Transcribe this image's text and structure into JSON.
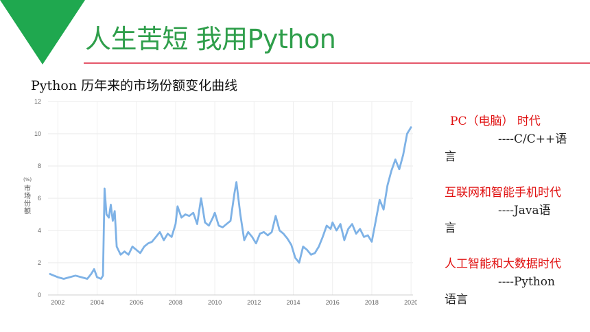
{
  "slide": {
    "title": "人生苦短 我用Python",
    "subtitle": "Python 历年来的市场份额变化曲线",
    "accent_green": "#1fa84f",
    "accent_line": "#e5566a"
  },
  "chart_data": {
    "type": "line",
    "title": "",
    "xlabel": "",
    "ylabel": "市场份额(%)",
    "ylabel_chars": [
      "(%)",
      "市",
      "场",
      "份",
      "额"
    ],
    "xlim": [
      2001.5,
      2020.1
    ],
    "ylim": [
      0,
      12
    ],
    "yticks": [
      "0",
      "2",
      "4",
      "6",
      "8",
      "10",
      "12"
    ],
    "xticks": [
      "2002",
      "2004",
      "2006",
      "2008",
      "2010",
      "2012",
      "2014",
      "2016",
      "2018",
      "2020"
    ],
    "grid": true,
    "line_color": "#7eb2e6",
    "series": [
      {
        "x": [
          2001.6,
          2001.8,
          2002.0,
          2002.3,
          2002.6,
          2002.9,
          2003.2,
          2003.5,
          2003.7,
          2003.85,
          2004.0,
          2004.2,
          2004.3,
          2004.38,
          2004.48,
          2004.6,
          2004.7,
          2004.8,
          2004.9,
          2005.0,
          2005.2,
          2005.4,
          2005.6,
          2005.8,
          2006.0,
          2006.2,
          2006.4,
          2006.6,
          2006.8,
          2007.0,
          2007.2,
          2007.4,
          2007.6,
          2007.8,
          2008.0,
          2008.1,
          2008.3,
          2008.5,
          2008.7,
          2008.9,
          2009.1,
          2009.3,
          2009.5,
          2009.7,
          2009.9,
          2010.0,
          2010.2,
          2010.4,
          2010.6,
          2010.8,
          2011.0,
          2011.1,
          2011.3,
          2011.5,
          2011.7,
          2011.9,
          2012.1,
          2012.3,
          2012.5,
          2012.7,
          2012.9,
          2013.1,
          2013.3,
          2013.5,
          2013.7,
          2013.9,
          2014.1,
          2014.3,
          2014.5,
          2014.7,
          2014.9,
          2015.1,
          2015.3,
          2015.5,
          2015.7,
          2015.9,
          2016.0,
          2016.2,
          2016.4,
          2016.6,
          2016.8,
          2017.0,
          2017.2,
          2017.4,
          2017.6,
          2017.8,
          2018.0,
          2018.2,
          2018.4,
          2018.6,
          2018.8,
          2019.0,
          2019.2,
          2019.4,
          2019.6,
          2019.8,
          2020.0
        ],
        "y": [
          1.3,
          1.2,
          1.1,
          1.0,
          1.1,
          1.2,
          1.1,
          1.0,
          1.3,
          1.6,
          1.1,
          1.0,
          1.2,
          6.6,
          5.0,
          4.8,
          5.6,
          4.6,
          5.2,
          3.0,
          2.5,
          2.7,
          2.5,
          3.0,
          2.8,
          2.6,
          3.0,
          3.2,
          3.3,
          3.6,
          3.9,
          3.4,
          3.8,
          3.6,
          4.4,
          5.5,
          4.8,
          5.0,
          4.9,
          5.1,
          4.4,
          6.0,
          4.5,
          4.3,
          4.8,
          5.1,
          4.3,
          4.2,
          4.4,
          4.6,
          6.3,
          7.0,
          5.0,
          3.4,
          3.9,
          3.6,
          3.2,
          3.8,
          3.9,
          3.7,
          3.9,
          4.9,
          4.0,
          3.8,
          3.5,
          3.1,
          2.3,
          2.0,
          3.0,
          2.8,
          2.5,
          2.6,
          3.0,
          3.6,
          4.3,
          4.1,
          4.5,
          4.0,
          4.4,
          3.4,
          4.1,
          4.4,
          3.8,
          4.1,
          3.6,
          3.7,
          3.3,
          4.6,
          5.9,
          5.3,
          6.8,
          7.7,
          8.4,
          7.8,
          8.7,
          10.0,
          10.4
        ]
      }
    ]
  },
  "sidebar": {
    "eras": [
      {
        "title": "PC（电脑） 时代",
        "lang_head": "----C/C++语",
        "lang_tail": "言"
      },
      {
        "title": "互联网和智能手机时代",
        "lang_head": "----Java语",
        "lang_tail": "言"
      },
      {
        "title": "人工智能和大数据时代",
        "lang_head": "----Python",
        "lang_tail": "语言"
      }
    ]
  }
}
